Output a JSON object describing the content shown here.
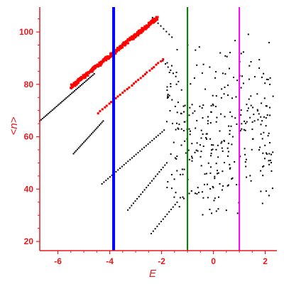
{
  "chart_data": {
    "type": "scatter",
    "xlabel": "E",
    "ylabel": "<n>",
    "xlim": [
      -6.7,
      2.45
    ],
    "ylim": [
      16.5,
      109.5
    ],
    "x_ticks": [
      -6,
      -4,
      -2,
      0,
      2
    ],
    "y_ticks": [
      20,
      40,
      60,
      80,
      100
    ],
    "grid": false,
    "axis_color": "#e8191e",
    "vertical_lines": [
      {
        "x": -3.85,
        "color": "#0000ff"
      },
      {
        "x": -1.0,
        "color": "#008000"
      },
      {
        "x": 1.0,
        "color": "#ff00ff"
      }
    ],
    "series": [
      {
        "color": "#000000",
        "segments": [
          {
            "x0": -6.7,
            "y0": 66,
            "x1": -4.6,
            "y1": 84,
            "count": 40
          },
          {
            "x0": -2.35,
            "y0": 105.5,
            "x1": -1.6,
            "y1": 98,
            "count": 8
          },
          {
            "x0": -5.4,
            "y0": 53.5,
            "x1": -4.25,
            "y1": 66,
            "count": 24
          },
          {
            "x0": -1.95,
            "y0": 89,
            "x1": -1.45,
            "y1": 83,
            "count": 6
          },
          {
            "x0": -4.3,
            "y0": 42,
            "x1": -1.9,
            "y1": 62.5,
            "count": 32
          },
          {
            "x0": -3.3,
            "y0": 32,
            "x1": -1.8,
            "y1": 50,
            "count": 22
          },
          {
            "x0": -2.4,
            "y0": 23,
            "x1": -1.4,
            "y1": 35,
            "count": 14
          }
        ],
        "scatter_region": {
          "x0": -1.8,
          "x1": 2.35,
          "y0": 28,
          "y1": 108,
          "count": 340
        }
      },
      {
        "color": "#ff0000",
        "segments": [
          {
            "x0": -5.5,
            "y0": 79,
            "x1": -2.15,
            "y1": 105.5,
            "count": 320,
            "jitter": 0.8
          },
          {
            "x0": -4.45,
            "y0": 69,
            "x1": -1.95,
            "y1": 89.5,
            "count": 30,
            "jitter": 0.1
          }
        ]
      }
    ]
  }
}
